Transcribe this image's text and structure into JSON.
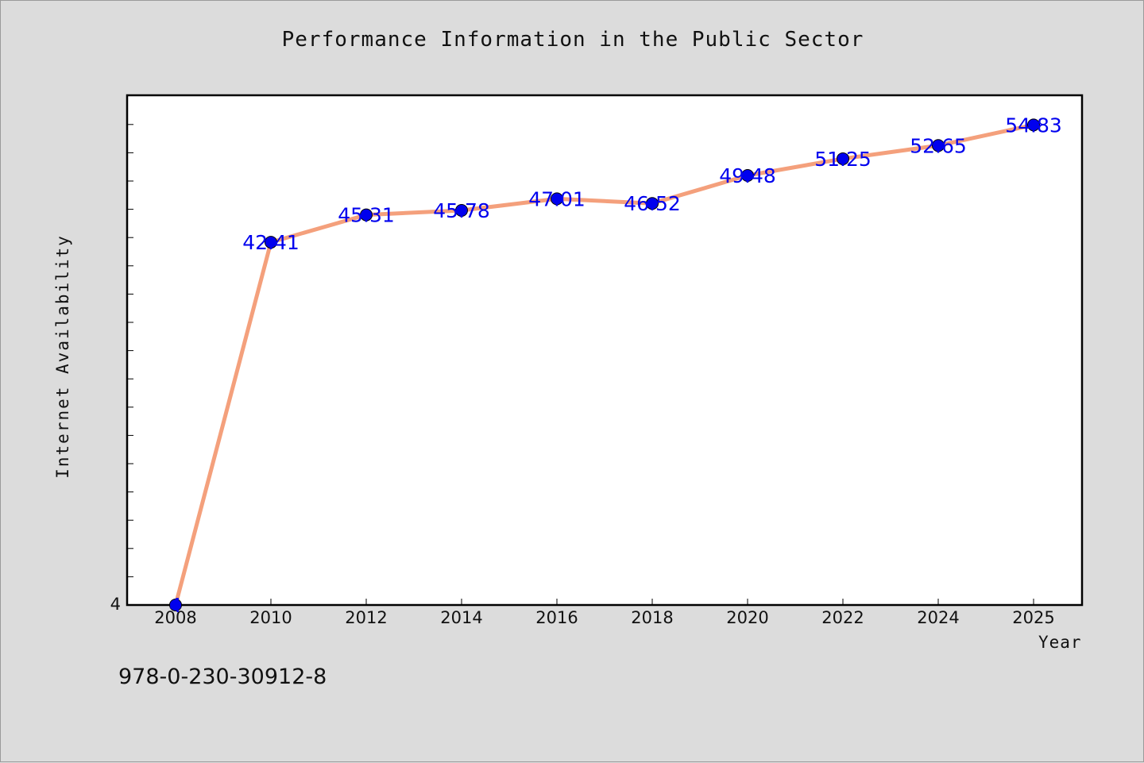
{
  "title": "Performance Information in the Public Sector",
  "footer_text": "978-0-230-30912-8",
  "colors": {
    "background": "#dcdcdc",
    "plot_background": "#ffffff",
    "line": "#f4a07c",
    "marker": "#0000ee",
    "data_label": "#0000ee"
  },
  "chart_data": {
    "type": "line",
    "title": "Performance Information in the Public Sector",
    "xlabel": "Year",
    "ylabel": "Internet Availability",
    "categories": [
      "2008",
      "2010",
      "2012",
      "2014",
      "2016",
      "2018",
      "2020",
      "2022",
      "2024",
      "2025"
    ],
    "series": [
      {
        "values": [
          4,
          42.41,
          45.31,
          45.78,
          47.01,
          46.52,
          49.48,
          51.25,
          52.65,
          54.83
        ]
      }
    ],
    "data_labels": [
      "4",
      "42.41",
      "45.31",
      "45.78",
      "47.01",
      "46.52",
      "49.48",
      "51.25",
      "52.65",
      "54.83"
    ],
    "y_tick_labels": [
      "4"
    ],
    "ylim": [
      4,
      57.97
    ],
    "grid": false,
    "legend": "none"
  }
}
